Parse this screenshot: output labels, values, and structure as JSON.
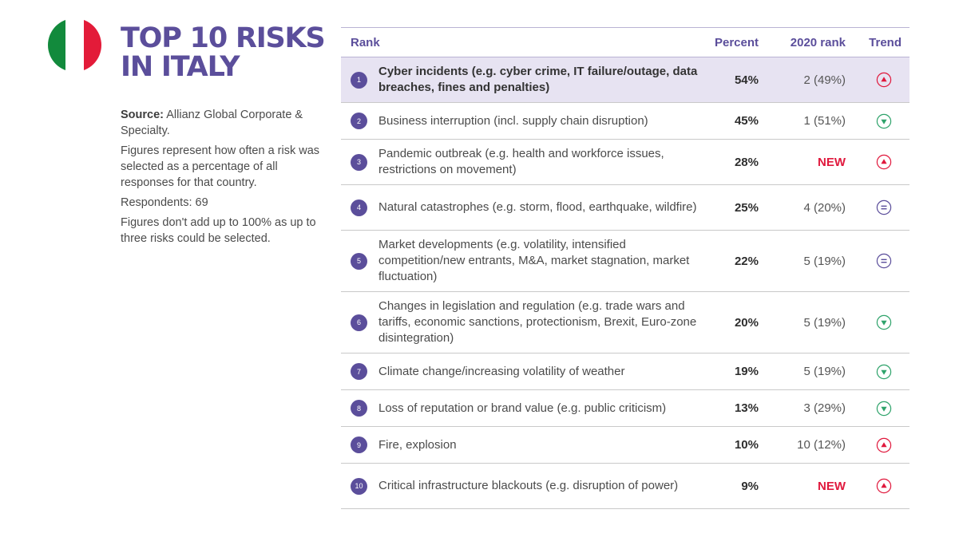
{
  "title": {
    "line1": "TOP 10 RISKS",
    "line2": "IN ITALY"
  },
  "flag_colors": [
    "#128a3c",
    "#ffffff",
    "#e31b39"
  ],
  "sidebar": {
    "source_label": "Source:",
    "source_text": "Allianz Global Corporate & Specialty.",
    "figures_note": "Figures represent how often a risk was selected as a percentage of all responses for that country.",
    "respondents": "Respondents: 69",
    "sum_note": "Figures don't add up to 100% as up to three risks could be selected."
  },
  "table": {
    "headers": {
      "rank": "Rank",
      "percent": "Percent",
      "prev": "2020 rank",
      "trend": "Trend"
    },
    "rows": [
      {
        "num": "1",
        "risk": "Cyber incidents (e.g. cyber crime, IT failure/outage, data breaches, fines and penalties)",
        "percent": "54%",
        "prev": "2 (49%)",
        "trend": "up-icon"
      },
      {
        "num": "2",
        "risk": "Business interruption (incl. supply chain disruption)",
        "percent": "45%",
        "prev": "1 (51%)",
        "trend": "down-icon"
      },
      {
        "num": "3",
        "risk": "Pandemic outbreak (e.g. health and workforce issues, restrictions on movement)",
        "percent": "28%",
        "prev": "NEW",
        "trend": "up-icon"
      },
      {
        "num": "4",
        "risk": "Natural catastrophes (e.g. storm, flood, earthquake, wildfire)",
        "percent": "25%",
        "prev": "4 (20%)",
        "trend": "equal-icon"
      },
      {
        "num": "5",
        "risk": "Market developments (e.g. volatility, intensified competition/new entrants, M&A, market stagnation, market fluctuation)",
        "percent": "22%",
        "prev": "5 (19%)",
        "trend": "equal-icon"
      },
      {
        "num": "6",
        "risk": "Changes in legislation and regulation (e.g. trade wars and tariffs, economic sanctions, protectionism, Brexit, Euro-zone disintegration)",
        "percent": "20%",
        "prev": "5 (19%)",
        "trend": "down-icon"
      },
      {
        "num": "7",
        "risk": "Climate change/increasing volatility of weather",
        "percent": "19%",
        "prev": "5 (19%)",
        "trend": "down-icon"
      },
      {
        "num": "8",
        "risk": "Loss of reputation or brand value (e.g. public criticism)",
        "percent": "13%",
        "prev": "3 (29%)",
        "trend": "down-icon"
      },
      {
        "num": "9",
        "risk": "Fire, explosion",
        "percent": "10%",
        "prev": "10 (12%)",
        "trend": "up-icon"
      },
      {
        "num": "10",
        "risk": "Critical infrastructure blackouts (e.g. disruption of power)",
        "percent": "9%",
        "prev": "NEW",
        "trend": "up-icon"
      }
    ]
  },
  "colors": {
    "accent": "#5b4e9b",
    "highlight": "#e7e3f2",
    "up": "#e0193d",
    "down": "#2fa36b",
    "equal": "#5b4e9b"
  }
}
